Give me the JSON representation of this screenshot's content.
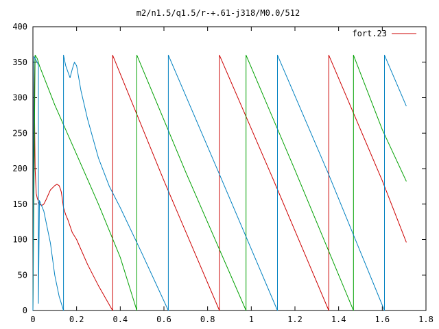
{
  "chart_data": {
    "type": "line",
    "title": "m2/n1.5/q1.5/r-+.61-j318/M0.0/512",
    "xlabel": "",
    "ylabel": "",
    "xlim": [
      0,
      1.8
    ],
    "ylim": [
      0,
      400
    ],
    "xticks": [
      0,
      0.2,
      0.4,
      0.6,
      0.8,
      1,
      1.2,
      1.4,
      1.6,
      1.8
    ],
    "xtick_labels": [
      "0",
      "0.2",
      "0.4",
      "0.6",
      "0.8",
      "1",
      "1.2",
      "1.4",
      "1.6",
      "1.8"
    ],
    "yticks": [
      0,
      50,
      100,
      150,
      200,
      250,
      300,
      350,
      400
    ],
    "ytick_labels": [
      "0",
      "50",
      "100",
      "150",
      "200",
      "250",
      "300",
      "350",
      "400"
    ],
    "grid": false,
    "legend": {
      "position": "top-right",
      "entries": [
        "fort.23"
      ]
    },
    "series": [
      {
        "name": "fort.23",
        "color": "#cc0000",
        "x": [
          0.0,
          0.005,
          0.01,
          0.015,
          0.02,
          0.03,
          0.04,
          0.05,
          0.06,
          0.08,
          0.1,
          0.11,
          0.12,
          0.125,
          0.13,
          0.14,
          0.15,
          0.16,
          0.18,
          0.2,
          0.25,
          0.3,
          0.35,
          0.365,
          0.365,
          0.6,
          0.854,
          0.854,
          1.1,
          1.355,
          1.355,
          1.6,
          1.71
        ],
        "y": [
          0,
          350,
          200,
          165,
          158,
          150,
          148,
          150,
          156,
          170,
          176,
          178,
          176,
          172,
          167,
          145,
          135,
          128,
          110,
          100,
          65,
          35,
          8,
          0,
          360,
          183,
          0,
          360,
          185,
          0,
          360,
          183,
          96
        ]
      },
      {
        "name": "",
        "color": "#00a000",
        "x": [
          0.0,
          0.005,
          0.01,
          0.02,
          0.03,
          0.1,
          0.2,
          0.3,
          0.4,
          0.476,
          0.476,
          0.7,
          0.976,
          0.976,
          1.2,
          1.468,
          1.468,
          1.6,
          1.71
        ],
        "y": [
          0,
          180,
          360,
          355,
          345,
          290,
          220,
          150,
          75,
          0,
          360,
          195,
          0,
          360,
          198,
          0,
          360,
          255,
          182
        ]
      },
      {
        "name": "",
        "color": "#0080c0",
        "x": [
          0.0,
          0.005,
          0.01,
          0.02,
          0.025,
          0.025,
          0.03,
          0.05,
          0.08,
          0.1,
          0.12,
          0.14,
          0.14,
          0.15,
          0.17,
          0.18,
          0.19,
          0.2,
          0.22,
          0.25,
          0.3,
          0.35,
          0.4,
          0.5,
          0.62,
          0.62,
          0.85,
          1.12,
          1.12,
          1.35,
          1.61,
          1.61,
          1.71
        ],
        "y": [
          0,
          358,
          355,
          350,
          345,
          10,
          155,
          140,
          95,
          50,
          20,
          0,
          360,
          345,
          328,
          340,
          350,
          345,
          310,
          270,
          215,
          175,
          145,
          80,
          0,
          360,
          195,
          0,
          360,
          195,
          0,
          360,
          288
        ]
      }
    ]
  }
}
